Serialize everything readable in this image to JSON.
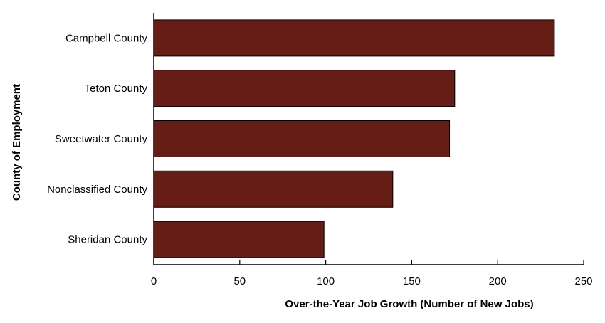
{
  "chart_data": {
    "type": "bar",
    "orientation": "horizontal",
    "categories": [
      "Campbell County",
      "Teton County",
      "Sweetwater County",
      "Nonclassified County",
      "Sheridan County"
    ],
    "values": [
      233,
      175,
      172,
      139,
      99
    ],
    "xlabel": "Over-the-Year Job Growth (Number of New Jobs)",
    "ylabel": "County of Employment",
    "xlim": [
      0,
      250
    ],
    "xticks": [
      0,
      50,
      100,
      150,
      200,
      250
    ],
    "xtick_labels": [
      "0",
      "50",
      "100",
      "150",
      "200",
      "250"
    ],
    "grid": false,
    "legend": "none",
    "colors": {
      "bar": "#661d16",
      "bar_outline": "#000000"
    }
  }
}
